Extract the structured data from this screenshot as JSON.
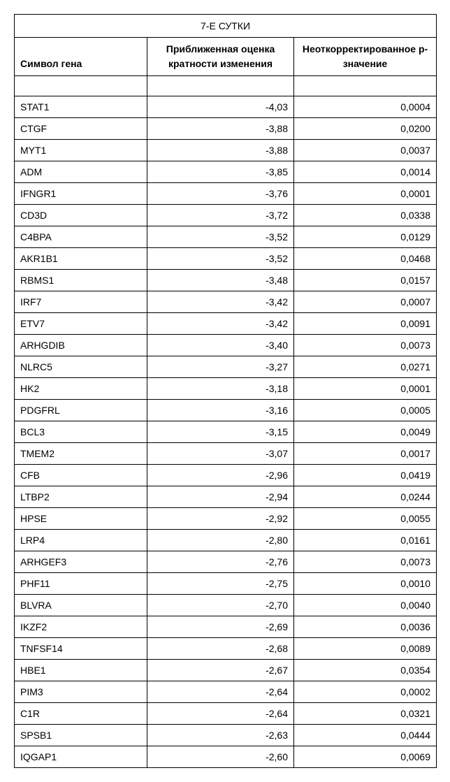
{
  "table": {
    "title": "7-Е СУТКИ",
    "columns": [
      "Символ гена",
      "Приближенная оценка кратности изменения",
      "Неоткорректированное p-значение"
    ],
    "rows": [
      [
        "STAT1",
        "-4,03",
        "0,0004"
      ],
      [
        "CTGF",
        "-3,88",
        "0,0200"
      ],
      [
        "MYT1",
        "-3,88",
        "0,0037"
      ],
      [
        "ADM",
        "-3,85",
        "0,0014"
      ],
      [
        "IFNGR1",
        "-3,76",
        "0,0001"
      ],
      [
        "CD3D",
        "-3,72",
        "0,0338"
      ],
      [
        "C4BPA",
        "-3,52",
        "0,0129"
      ],
      [
        "AKR1B1",
        "-3,52",
        "0,0468"
      ],
      [
        "RBMS1",
        "-3,48",
        "0,0157"
      ],
      [
        "IRF7",
        "-3,42",
        "0,0007"
      ],
      [
        "ETV7",
        "-3,42",
        "0,0091"
      ],
      [
        "ARHGDIB",
        "-3,40",
        "0,0073"
      ],
      [
        "NLRC5",
        "-3,27",
        "0,0271"
      ],
      [
        "HK2",
        "-3,18",
        "0,0001"
      ],
      [
        "PDGFRL",
        "-3,16",
        "0,0005"
      ],
      [
        "BCL3",
        "-3,15",
        "0,0049"
      ],
      [
        "TMEM2",
        "-3,07",
        "0,0017"
      ],
      [
        "CFB",
        "-2,96",
        "0,0419"
      ],
      [
        "LTBP2",
        "-2,94",
        "0,0244"
      ],
      [
        "HPSE",
        "-2,92",
        "0,0055"
      ],
      [
        "LRP4",
        "-2,80",
        "0,0161"
      ],
      [
        "ARHGEF3",
        "-2,76",
        "0,0073"
      ],
      [
        "PHF11",
        "-2,75",
        "0,0010"
      ],
      [
        "BLVRA",
        "-2,70",
        "0,0040"
      ],
      [
        "IKZF2",
        "-2,69",
        "0,0036"
      ],
      [
        "TNFSF14",
        "-2,68",
        "0,0089"
      ],
      [
        "HBE1",
        "-2,67",
        "0,0354"
      ],
      [
        "PIM3",
        "-2,64",
        "0,0002"
      ],
      [
        "C1R",
        "-2,64",
        "0,0321"
      ],
      [
        "SPSB1",
        "-2,63",
        "0,0444"
      ],
      [
        "IQGAP1",
        "-2,60",
        "0,0069"
      ]
    ]
  }
}
